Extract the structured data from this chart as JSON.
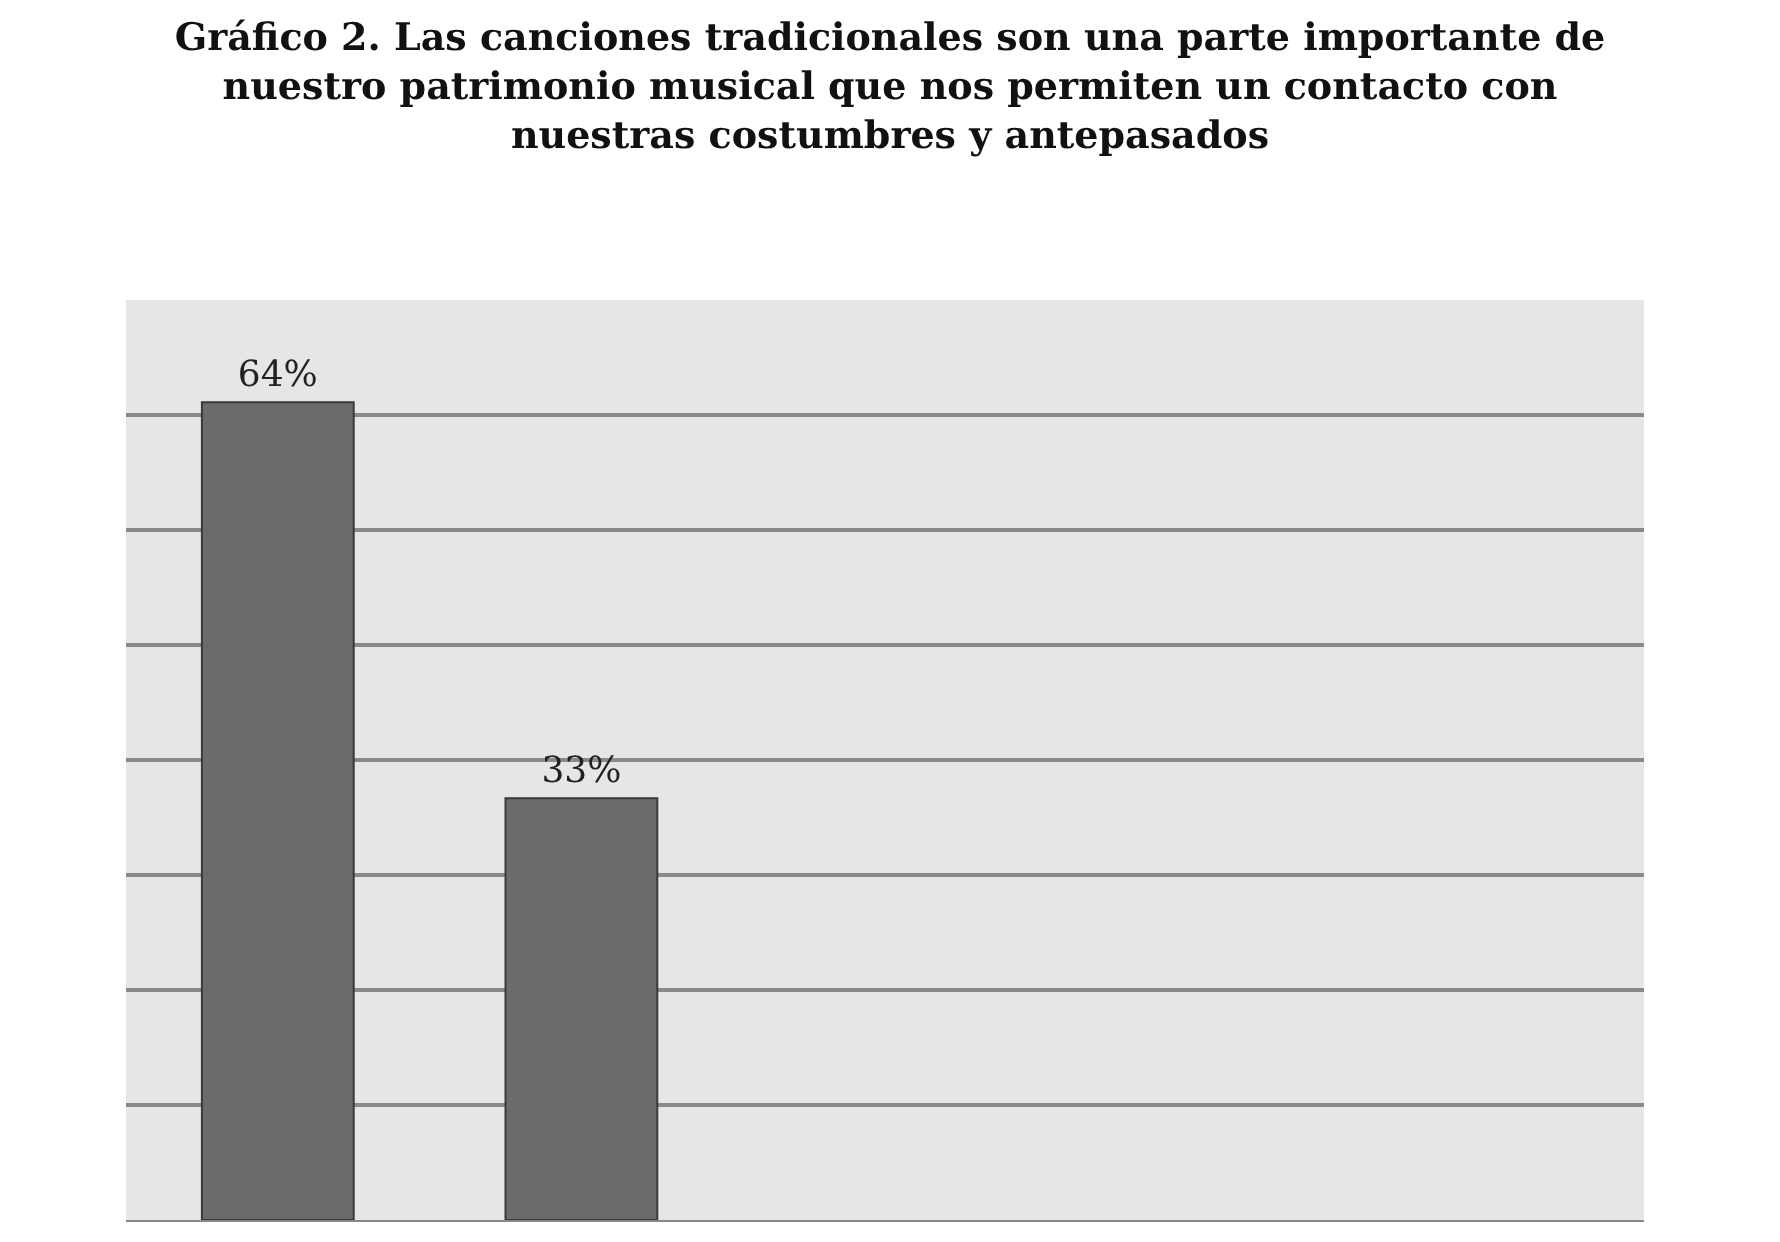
{
  "chart_data": {
    "type": "bar",
    "title": "Gráfico 2. Las canciones tradicionales son una parte importante de\nnuestro patrimonio musical que nos permiten un contacto con\nnuestras costumbres y antepasados",
    "categories": [
      null,
      null
    ],
    "values": [
      64,
      33
    ],
    "value_labels": [
      "64%",
      "33%"
    ],
    "color": "#6b6b6b",
    "ylim": [
      0,
      72
    ],
    "yticks": [
      {
        "value": 0,
        "label": null
      },
      {
        "value": 9,
        "label": null
      },
      {
        "value": 18,
        "label": null
      },
      {
        "value": 27,
        "label": null
      },
      {
        "value": 36,
        "label": null
      },
      {
        "value": 45,
        "label": null
      },
      {
        "value": 54,
        "label": null
      },
      {
        "value": 63,
        "label": null
      },
      {
        "value": 72,
        "label": null
      }
    ],
    "grid": "y",
    "legend": false
  }
}
